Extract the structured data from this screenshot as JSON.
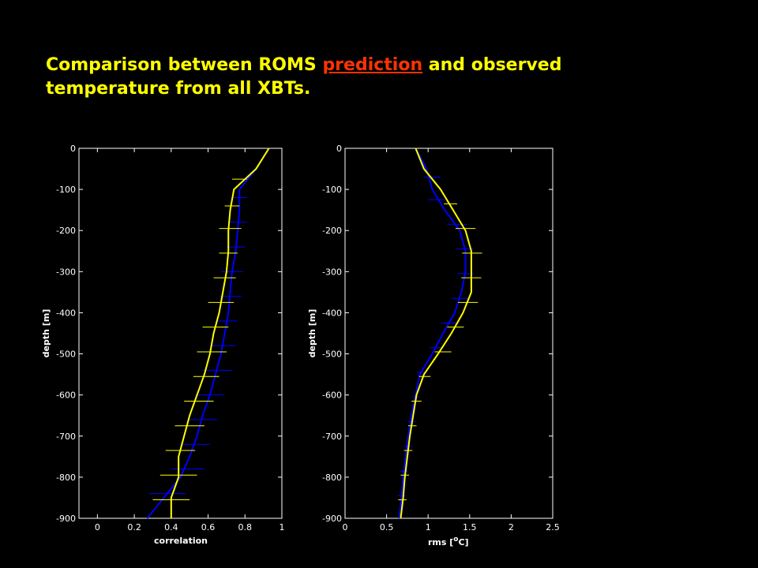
{
  "title": {
    "before": "Comparison between ROMS",
    "link": "prediction",
    "after": "and observed temperature from all XBTs."
  },
  "chart_data": [
    {
      "type": "line",
      "xlabel": "correlation",
      "ylabel": "depth [m]",
      "xlim": [
        -0.1,
        1
      ],
      "xticks": [
        0,
        0.2,
        0.4,
        0.6,
        0.8,
        1
      ],
      "ylim": [
        -900,
        0
      ],
      "yticks": [
        0,
        -100,
        -200,
        -300,
        -400,
        -500,
        -600,
        -700,
        -800,
        -900
      ],
      "y": [
        0,
        -50,
        -100,
        -150,
        -200,
        -250,
        -300,
        -350,
        -400,
        -450,
        -500,
        -550,
        -600,
        -650,
        -700,
        -750,
        -800,
        -850,
        -900
      ],
      "series": [
        {
          "color": "#0000ff",
          "values": [
            0.93,
            0.86,
            0.77,
            0.77,
            0.76,
            0.75,
            0.73,
            0.72,
            0.71,
            0.69,
            0.67,
            0.64,
            0.61,
            0.57,
            0.54,
            0.5,
            0.45,
            0.36,
            0.27
          ],
          "eb_y": [
            -120,
            -180,
            -240,
            -300,
            -360,
            -420,
            -480,
            -540,
            -600,
            -660,
            -720,
            -780,
            -840
          ],
          "eb_x": [
            0.77,
            0.76,
            0.75,
            0.73,
            0.72,
            0.7,
            0.68,
            0.65,
            0.61,
            0.57,
            0.53,
            0.49,
            0.38
          ],
          "eb_err": [
            0.04,
            0.05,
            0.05,
            0.06,
            0.06,
            0.06,
            0.07,
            0.08,
            0.08,
            0.08,
            0.08,
            0.09,
            0.1
          ]
        },
        {
          "color": "#ffff00",
          "values": [
            0.93,
            0.86,
            0.74,
            0.72,
            0.71,
            0.71,
            0.7,
            0.68,
            0.66,
            0.63,
            0.61,
            0.58,
            0.54,
            0.5,
            0.47,
            0.44,
            0.44,
            0.4,
            0.4
          ],
          "eb_y": [
            -75,
            -140,
            -195,
            -255,
            -315,
            -375,
            -435,
            -495,
            -555,
            -615,
            -675,
            -735,
            -795,
            -855
          ],
          "eb_x": [
            0.77,
            0.73,
            0.72,
            0.71,
            0.69,
            0.67,
            0.64,
            0.62,
            0.59,
            0.55,
            0.5,
            0.45,
            0.44,
            0.4
          ],
          "eb_err": [
            0.04,
            0.04,
            0.06,
            0.05,
            0.06,
            0.07,
            0.07,
            0.08,
            0.07,
            0.08,
            0.08,
            0.08,
            0.1,
            0.1
          ]
        }
      ]
    },
    {
      "type": "line",
      "xlabel": {
        "before": "rms [",
        "sup": "o",
        "after": "C]"
      },
      "ylabel": "depth [m]",
      "xlim": [
        0,
        2.5
      ],
      "xticks": [
        0,
        0.5,
        1,
        1.5,
        2,
        2.5
      ],
      "ylim": [
        -900,
        0
      ],
      "yticks": [
        0,
        -100,
        -200,
        -300,
        -400,
        -500,
        -600,
        -700,
        -800,
        -900
      ],
      "y": [
        0,
        -50,
        -100,
        -150,
        -200,
        -250,
        -300,
        -350,
        -400,
        -450,
        -500,
        -550,
        -600,
        -650,
        -700,
        -750,
        -800,
        -850,
        -900
      ],
      "series": [
        {
          "color": "#0000ff",
          "values": [
            0.85,
            0.98,
            1.05,
            1.2,
            1.38,
            1.45,
            1.45,
            1.4,
            1.32,
            1.18,
            1.05,
            0.9,
            0.85,
            0.8,
            0.76,
            0.73,
            0.7,
            0.68,
            0.65
          ],
          "eb_y": [
            -70,
            -125,
            -185,
            -245,
            -305,
            -365,
            -425,
            -485,
            -545,
            -605,
            -665,
            -725,
            -785,
            -845
          ],
          "eb_x": [
            1.05,
            1.1,
            1.35,
            1.44,
            1.45,
            1.38,
            1.26,
            1.1,
            0.92,
            0.85,
            0.8,
            0.76,
            0.71,
            0.68
          ],
          "eb_err": [
            0.1,
            0.1,
            0.12,
            0.1,
            0.1,
            0.1,
            0.1,
            0.08,
            0.06,
            0.05,
            0.05,
            0.05,
            0.05,
            0.05
          ]
        },
        {
          "color": "#ffff00",
          "values": [
            0.85,
            0.95,
            1.15,
            1.3,
            1.45,
            1.52,
            1.52,
            1.52,
            1.42,
            1.28,
            1.12,
            0.95,
            0.86,
            0.82,
            0.78,
            0.75,
            0.72,
            0.7,
            0.67
          ],
          "eb_y": [
            -135,
            -195,
            -255,
            -315,
            -375,
            -435,
            -495,
            -555,
            -615,
            -675,
            -735,
            -795,
            -855
          ],
          "eb_x": [
            1.27,
            1.45,
            1.53,
            1.52,
            1.48,
            1.33,
            1.18,
            0.96,
            0.86,
            0.81,
            0.76,
            0.72,
            0.69
          ],
          "eb_err": [
            0.08,
            0.12,
            0.12,
            0.12,
            0.12,
            0.1,
            0.1,
            0.07,
            0.06,
            0.05,
            0.05,
            0.05,
            0.05
          ]
        }
      ]
    }
  ]
}
